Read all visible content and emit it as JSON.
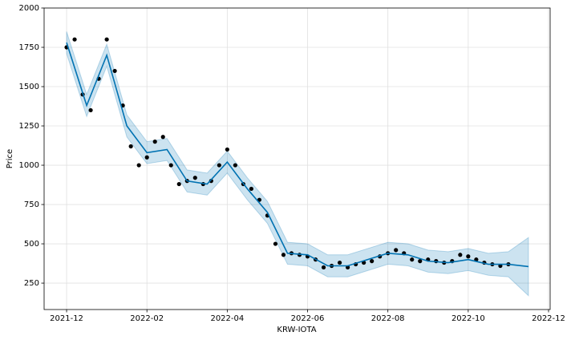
{
  "chart_data": {
    "type": "scatter",
    "x_label": "KRW-IOTA",
    "y_label": "Price",
    "xlim": [
      -0.56,
      12.04
    ],
    "xticks": [
      {
        "value": 0,
        "label": "2021-12"
      },
      {
        "value": 2,
        "label": "2022-02"
      },
      {
        "value": 4,
        "label": "2022-04"
      },
      {
        "value": 6,
        "label": "2022-06"
      },
      {
        "value": 8,
        "label": "2022-08"
      },
      {
        "value": 10,
        "label": "2022-10"
      },
      {
        "value": 12,
        "label": "2022-12"
      }
    ],
    "ylim": [
      82,
      2000
    ],
    "yticks": [
      250,
      500,
      750,
      1000,
      1250,
      1500,
      1750,
      2000
    ],
    "grid": true,
    "series": [
      {
        "type": "band",
        "color": "#0072B2",
        "x": [
          0,
          0.5,
          1,
          1.5,
          2,
          2.5,
          3,
          3.5,
          4,
          4.5,
          5,
          5.5,
          6,
          6.5,
          7,
          7.5,
          8,
          8.5,
          9,
          9.5,
          10,
          10.5,
          11,
          11.5
        ],
        "lower": [
          1710,
          1310,
          1630,
          1180,
          1010,
          1030,
          830,
          810,
          950,
          780,
          630,
          370,
          360,
          290,
          290,
          330,
          370,
          360,
          320,
          310,
          330,
          300,
          290,
          170
        ],
        "upper": [
          1850,
          1450,
          1770,
          1320,
          1150,
          1170,
          970,
          950,
          1090,
          920,
          770,
          510,
          500,
          430,
          430,
          470,
          510,
          500,
          460,
          450,
          470,
          440,
          450,
          540
        ]
      },
      {
        "type": "scatter",
        "color": "#000000",
        "x": [
          0,
          0.2,
          0.4,
          0.6,
          0.8,
          1,
          1.2,
          1.4,
          1.6,
          1.8,
          2,
          2.2,
          2.4,
          2.6,
          2.8,
          3,
          3.2,
          3.4,
          3.6,
          3.8,
          4,
          4.2,
          4.4,
          4.6,
          4.8,
          5,
          5.2,
          5.4,
          5.6,
          5.8,
          6,
          6.2,
          6.4,
          6.6,
          6.8,
          7,
          7.2,
          7.4,
          7.6,
          7.8,
          8,
          8.2,
          8.4,
          8.6,
          8.8,
          9,
          9.2,
          9.4,
          9.6,
          9.8,
          10,
          10.2,
          10.4,
          10.6,
          10.8,
          11
        ],
        "values": [
          1750,
          1800,
          1450,
          1350,
          1550,
          1800,
          1600,
          1380,
          1120,
          1000,
          1050,
          1150,
          1180,
          1000,
          880,
          900,
          920,
          880,
          900,
          1000,
          1100,
          1000,
          880,
          850,
          780,
          680,
          500,
          430,
          440,
          430,
          420,
          400,
          350,
          360,
          380,
          350,
          370,
          380,
          390,
          420,
          440,
          460,
          440,
          400,
          390,
          400,
          390,
          380,
          390,
          430,
          420,
          400,
          380,
          370,
          360,
          370
        ]
      },
      {
        "type": "line",
        "color": "#0072B2",
        "x": [
          0,
          0.5,
          1,
          1.5,
          2,
          2.5,
          3,
          3.5,
          4,
          4.5,
          5,
          5.5,
          6,
          6.5,
          7,
          7.5,
          8,
          8.5,
          9,
          9.5,
          10,
          10.5,
          11,
          11.5
        ],
        "values": [
          1780,
          1380,
          1700,
          1250,
          1080,
          1100,
          900,
          880,
          1020,
          850,
          700,
          440,
          430,
          360,
          360,
          400,
          440,
          430,
          390,
          380,
          400,
          370,
          370,
          355
        ]
      }
    ]
  }
}
